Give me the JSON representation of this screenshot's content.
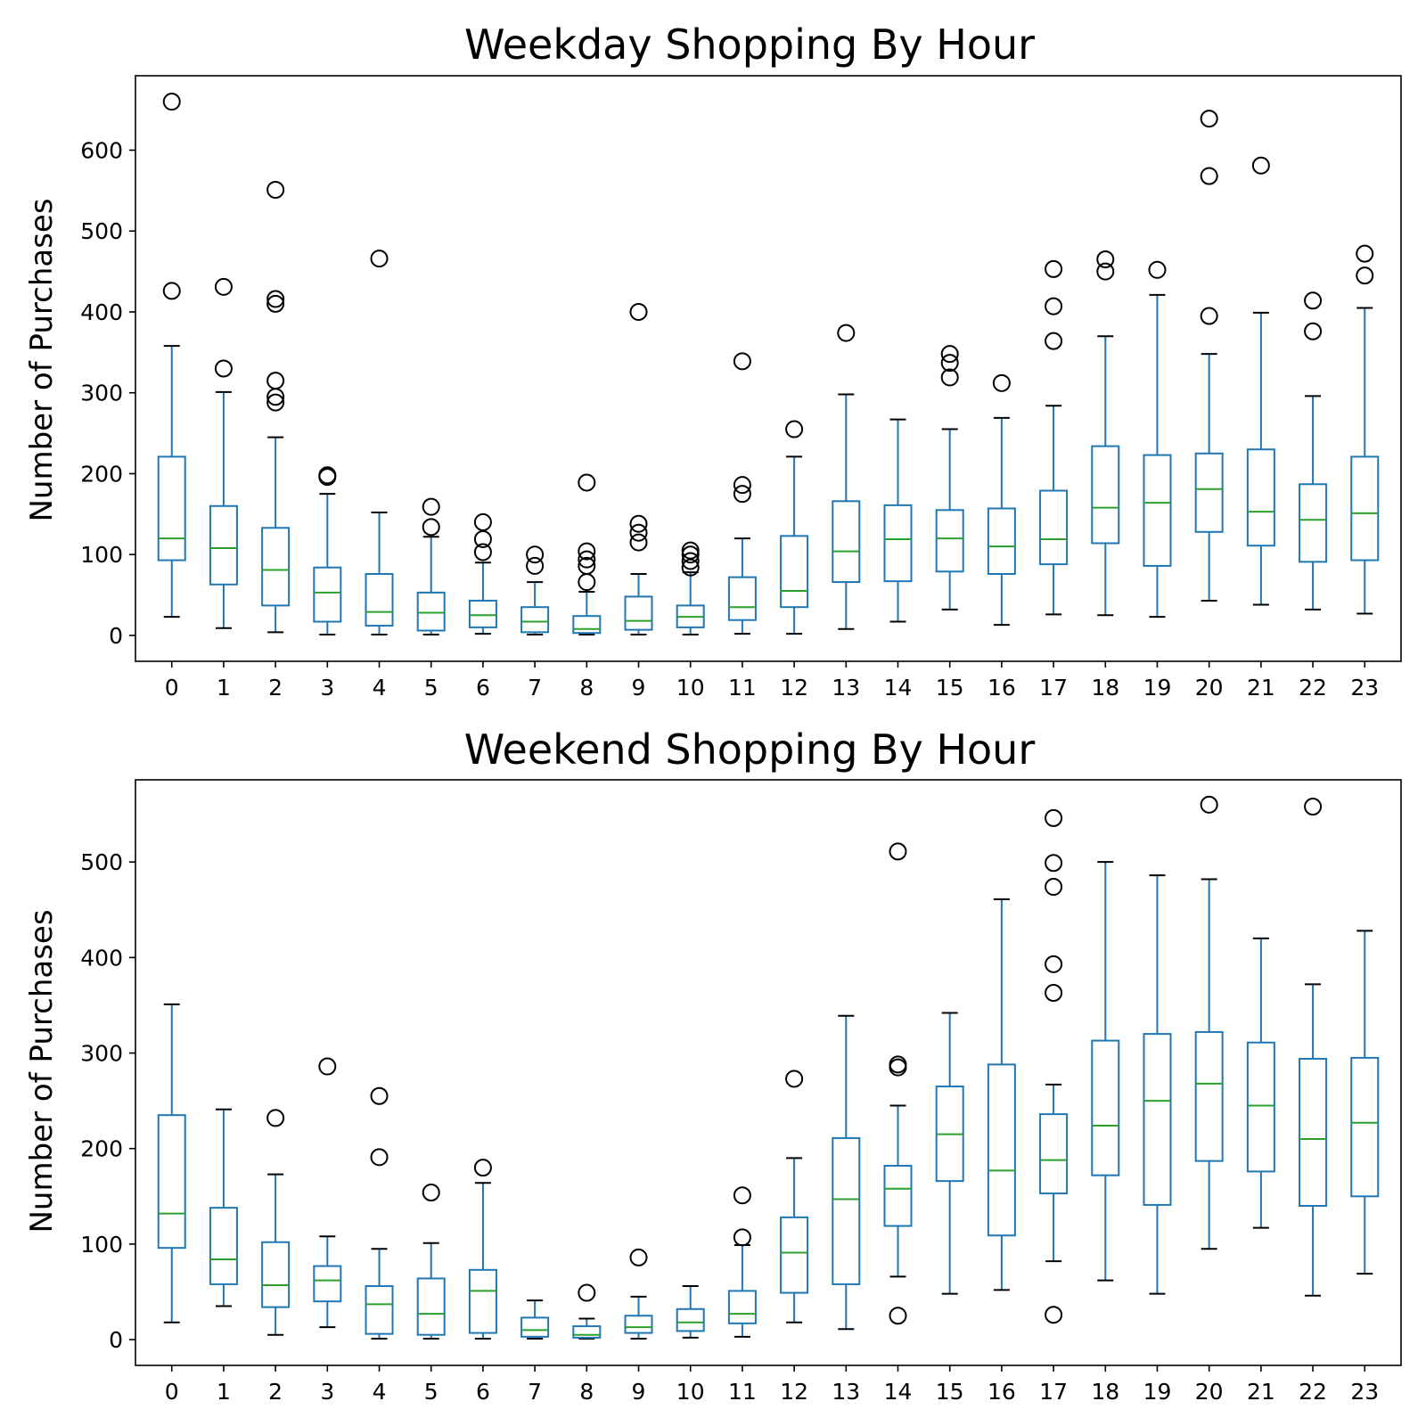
{
  "chart_data": [
    {
      "type": "box",
      "title": "Weekday Shopping By Hour",
      "xlabel": "",
      "ylabel": "Number of Purchases",
      "ylim": [
        -32,
        692
      ],
      "yticks": [
        0,
        100,
        200,
        300,
        400,
        500,
        600
      ],
      "grid": false,
      "categories": [
        "0",
        "1",
        "2",
        "3",
        "4",
        "5",
        "6",
        "7",
        "8",
        "9",
        "10",
        "11",
        "12",
        "13",
        "14",
        "15",
        "16",
        "17",
        "18",
        "19",
        "20",
        "21",
        "22",
        "23"
      ],
      "boxes": [
        {
          "whislo": 23,
          "q1": 93,
          "med": 120,
          "q3": 221,
          "whishi": 358,
          "fliers": [
            426,
            660
          ]
        },
        {
          "whislo": 9,
          "q1": 63,
          "med": 108,
          "q3": 160,
          "whishi": 301,
          "fliers": [
            330,
            431
          ]
        },
        {
          "whislo": 4,
          "q1": 37,
          "med": 81,
          "q3": 133,
          "whishi": 245,
          "fliers": [
            288,
            295,
            315,
            410,
            416,
            551
          ]
        },
        {
          "whislo": 1,
          "q1": 17,
          "med": 53,
          "q3": 84,
          "whishi": 175,
          "fliers": [
            196,
            198
          ]
        },
        {
          "whislo": 1,
          "q1": 12,
          "med": 29,
          "q3": 76,
          "whishi": 152,
          "fliers": [
            466
          ]
        },
        {
          "whislo": 1,
          "q1": 6,
          "med": 28,
          "q3": 53,
          "whishi": 122,
          "fliers": [
            134,
            159
          ]
        },
        {
          "whislo": 2,
          "q1": 10,
          "med": 25,
          "q3": 43,
          "whishi": 90,
          "fliers": [
            103,
            119,
            140
          ]
        },
        {
          "whislo": 1,
          "q1": 4,
          "med": 17,
          "q3": 35,
          "whishi": 66,
          "fliers": [
            86,
            100
          ]
        },
        {
          "whislo": 1,
          "q1": 3,
          "med": 8,
          "q3": 24,
          "whishi": 54,
          "fliers": [
            66,
            86,
            94,
            104,
            189
          ]
        },
        {
          "whislo": 1,
          "q1": 7,
          "med": 18,
          "q3": 48,
          "whishi": 76,
          "fliers": [
            115,
            127,
            138,
            400
          ]
        },
        {
          "whislo": 1,
          "q1": 10,
          "med": 23,
          "q3": 37,
          "whishi": 78,
          "fliers": [
            84,
            92,
            100,
            105
          ]
        },
        {
          "whislo": 2,
          "q1": 19,
          "med": 35,
          "q3": 72,
          "whishi": 120,
          "fliers": [
            175,
            186,
            339
          ]
        },
        {
          "whislo": 2,
          "q1": 35,
          "med": 55,
          "q3": 123,
          "whishi": 221,
          "fliers": [
            255
          ]
        },
        {
          "whislo": 8,
          "q1": 66,
          "med": 104,
          "q3": 166,
          "whishi": 298,
          "fliers": [
            374
          ]
        },
        {
          "whislo": 17,
          "q1": 67,
          "med": 119,
          "q3": 161,
          "whishi": 267,
          "fliers": []
        },
        {
          "whislo": 32,
          "q1": 79,
          "med": 120,
          "q3": 155,
          "whishi": 255,
          "fliers": [
            319,
            337,
            348
          ]
        },
        {
          "whislo": 13,
          "q1": 76,
          "med": 110,
          "q3": 157,
          "whishi": 269,
          "fliers": [
            312
          ]
        },
        {
          "whislo": 26,
          "q1": 88,
          "med": 119,
          "q3": 179,
          "whishi": 284,
          "fliers": [
            364,
            407,
            453
          ]
        },
        {
          "whislo": 25,
          "q1": 114,
          "med": 158,
          "q3": 234,
          "whishi": 370,
          "fliers": [
            450,
            465
          ]
        },
        {
          "whislo": 23,
          "q1": 86,
          "med": 164,
          "q3": 223,
          "whishi": 421,
          "fliers": [
            452
          ]
        },
        {
          "whislo": 43,
          "q1": 128,
          "med": 181,
          "q3": 225,
          "whishi": 348,
          "fliers": [
            395,
            568,
            639
          ]
        },
        {
          "whislo": 38,
          "q1": 111,
          "med": 153,
          "q3": 230,
          "whishi": 399,
          "fliers": [
            581
          ]
        },
        {
          "whislo": 32,
          "q1": 91,
          "med": 143,
          "q3": 187,
          "whishi": 296,
          "fliers": [
            376,
            414
          ]
        },
        {
          "whislo": 27,
          "q1": 93,
          "med": 151,
          "q3": 221,
          "whishi": 405,
          "fliers": [
            445,
            472
          ]
        }
      ]
    },
    {
      "type": "box",
      "title": "Weekend Shopping By Hour",
      "xlabel": "",
      "ylabel": "Number of Purchases",
      "ylim": [
        -27,
        586
      ],
      "yticks": [
        0,
        100,
        200,
        300,
        400,
        500
      ],
      "grid": false,
      "categories": [
        "0",
        "1",
        "2",
        "3",
        "4",
        "5",
        "6",
        "7",
        "8",
        "9",
        "10",
        "11",
        "12",
        "13",
        "14",
        "15",
        "16",
        "17",
        "18",
        "19",
        "20",
        "21",
        "22",
        "23"
      ],
      "boxes": [
        {
          "whislo": 18,
          "q1": 96,
          "med": 132,
          "q3": 235,
          "whishi": 351,
          "fliers": []
        },
        {
          "whislo": 35,
          "q1": 58,
          "med": 84,
          "q3": 138,
          "whishi": 241,
          "fliers": []
        },
        {
          "whislo": 5,
          "q1": 34,
          "med": 57,
          "q3": 102,
          "whishi": 173,
          "fliers": [
            232
          ]
        },
        {
          "whislo": 13,
          "q1": 40,
          "med": 62,
          "q3": 77,
          "whishi": 108,
          "fliers": [
            286
          ]
        },
        {
          "whislo": 1,
          "q1": 6,
          "med": 37,
          "q3": 56,
          "whishi": 95,
          "fliers": [
            191,
            255
          ]
        },
        {
          "whislo": 1,
          "q1": 5,
          "med": 27,
          "q3": 64,
          "whishi": 101,
          "fliers": [
            154
          ]
        },
        {
          "whislo": 1,
          "q1": 7,
          "med": 51,
          "q3": 73,
          "whishi": 164,
          "fliers": [
            180
          ]
        },
        {
          "whislo": 1,
          "q1": 3,
          "med": 10,
          "q3": 23,
          "whishi": 41,
          "fliers": []
        },
        {
          "whislo": 1,
          "q1": 2,
          "med": 5,
          "q3": 14,
          "whishi": 22,
          "fliers": [
            49
          ]
        },
        {
          "whislo": 1,
          "q1": 7,
          "med": 13,
          "q3": 25,
          "whishi": 45,
          "fliers": [
            86
          ]
        },
        {
          "whislo": 2,
          "q1": 9,
          "med": 18,
          "q3": 32,
          "whishi": 56,
          "fliers": []
        },
        {
          "whislo": 3,
          "q1": 17,
          "med": 27,
          "q3": 51,
          "whishi": 99,
          "fliers": [
            107,
            151
          ]
        },
        {
          "whislo": 18,
          "q1": 49,
          "med": 91,
          "q3": 128,
          "whishi": 190,
          "fliers": [
            273
          ]
        },
        {
          "whislo": 11,
          "q1": 58,
          "med": 147,
          "q3": 211,
          "whishi": 339,
          "fliers": []
        },
        {
          "whislo": 66,
          "q1": 119,
          "med": 158,
          "q3": 182,
          "whishi": 245,
          "fliers": [
            25,
            285,
            288,
            511
          ]
        },
        {
          "whislo": 48,
          "q1": 166,
          "med": 215,
          "q3": 265,
          "whishi": 342,
          "fliers": []
        },
        {
          "whislo": 52,
          "q1": 109,
          "med": 177,
          "q3": 288,
          "whishi": 461,
          "fliers": []
        },
        {
          "whislo": 82,
          "q1": 153,
          "med": 188,
          "q3": 236,
          "whishi": 267,
          "fliers": [
            26,
            363,
            393,
            474,
            499,
            546
          ]
        },
        {
          "whislo": 62,
          "q1": 172,
          "med": 224,
          "q3": 313,
          "whishi": 500,
          "fliers": []
        },
        {
          "whislo": 48,
          "q1": 141,
          "med": 250,
          "q3": 320,
          "whishi": 486,
          "fliers": []
        },
        {
          "whislo": 95,
          "q1": 187,
          "med": 268,
          "q3": 322,
          "whishi": 482,
          "fliers": [
            560
          ]
        },
        {
          "whislo": 117,
          "q1": 176,
          "med": 245,
          "q3": 311,
          "whishi": 420,
          "fliers": []
        },
        {
          "whislo": 46,
          "q1": 140,
          "med": 210,
          "q3": 294,
          "whishi": 372,
          "fliers": [
            558
          ]
        },
        {
          "whislo": 69,
          "q1": 150,
          "med": 227,
          "q3": 295,
          "whishi": 428,
          "fliers": []
        }
      ]
    }
  ]
}
